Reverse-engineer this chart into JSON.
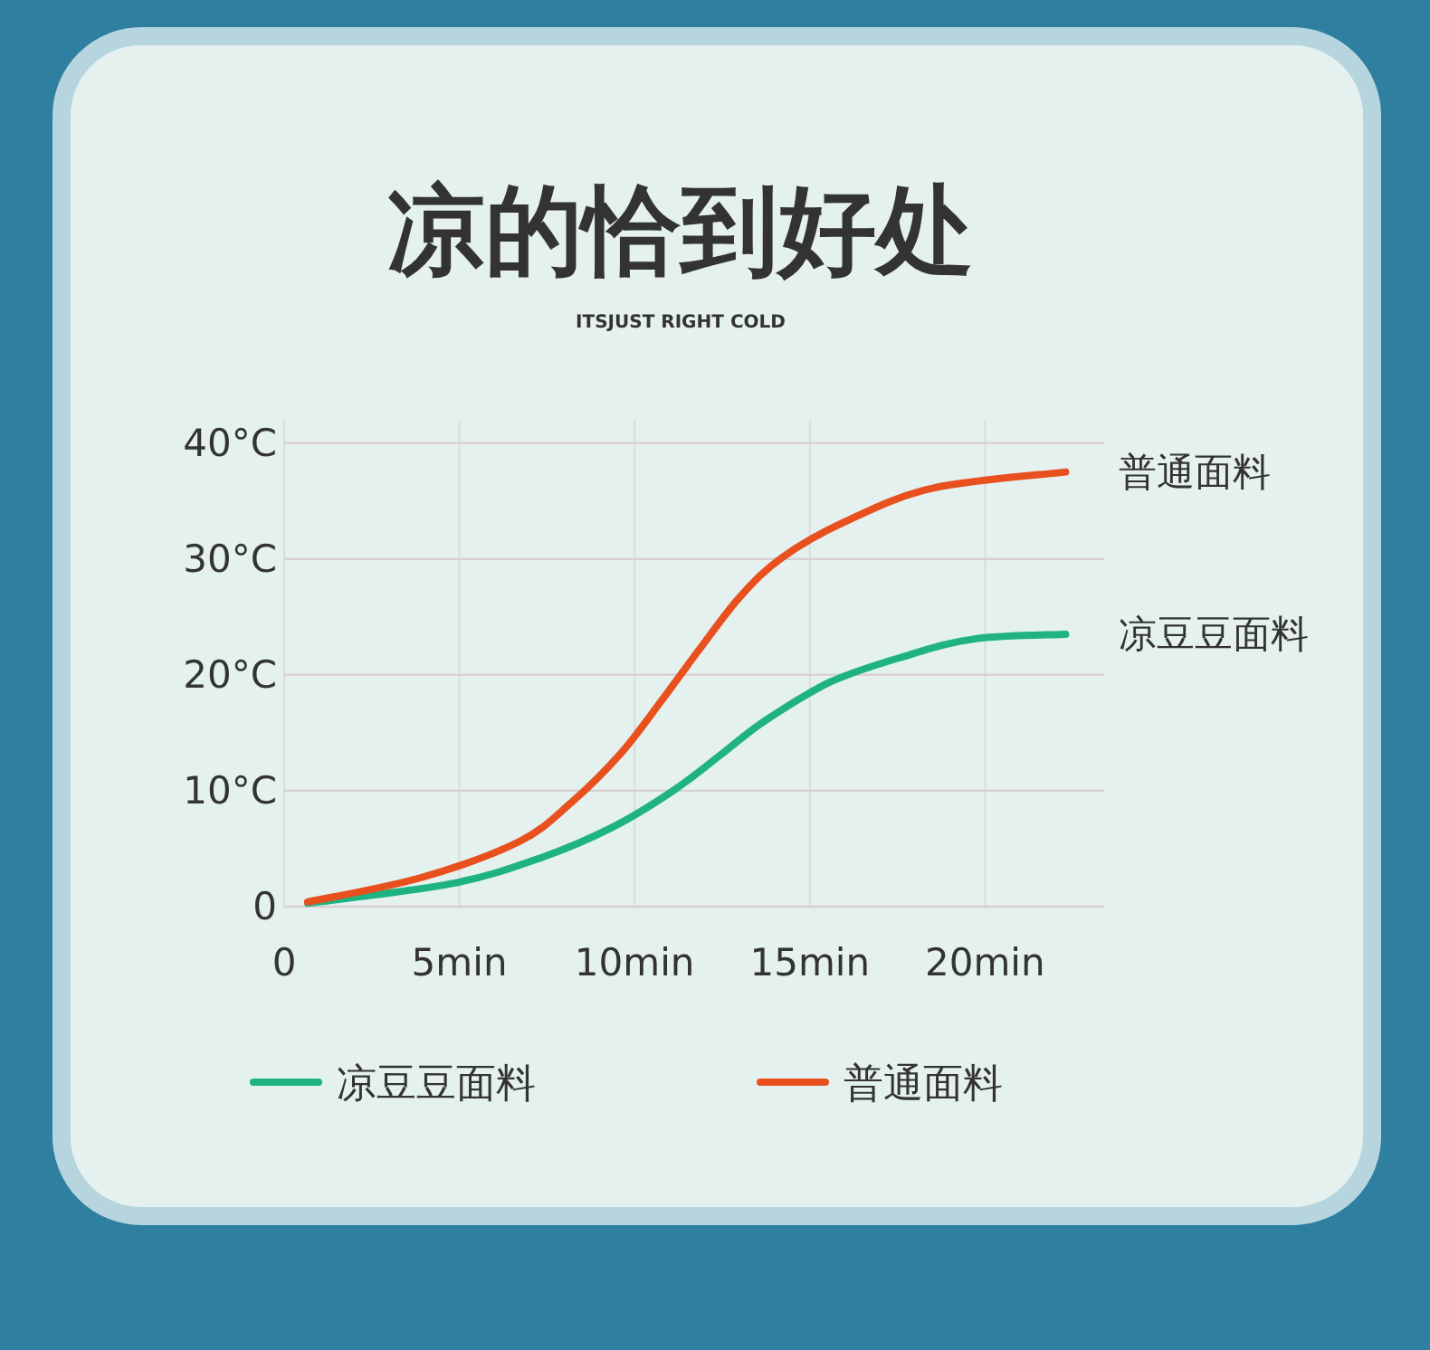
{
  "chart_data": {
    "type": "line",
    "title": "凉的恰到好处",
    "subtitle": "ITSJUST RIGHT COLD",
    "xlim": [
      0,
      23.4
    ],
    "ylim": [
      0,
      42
    ],
    "xticks": [
      0,
      {
        "value": 5,
        "label": "5min"
      },
      {
        "value": 10,
        "label": "10min"
      },
      {
        "value": 15,
        "label": "15min"
      },
      {
        "value": 20,
        "label": "20min"
      }
    ],
    "yticks": [
      0,
      {
        "value": 10,
        "label": "10°C"
      },
      {
        "value": 20,
        "label": "20°C"
      },
      {
        "value": 30,
        "label": "30°C"
      },
      {
        "value": 40,
        "label": "40°C"
      }
    ],
    "grid": true,
    "legend": "bottom",
    "marker": "none",
    "line_style": "solid",
    "series": [
      {
        "name": "凉豆豆面料",
        "color": "#1fb384",
        "x": [
          0.67,
          4.8,
          7.4,
          9.4,
          11.1,
          12.5,
          13.7,
          15.6,
          17.7,
          19.7,
          22.3
        ],
        "values": [
          0.3,
          2.0,
          4.3,
          6.9,
          10.0,
          13.2,
          16.0,
          19.4,
          21.6,
          23.1,
          23.5
        ]
      },
      {
        "name": "普通面料",
        "color": "#e8501e",
        "x": [
          0.67,
          3.9,
          6.7,
          8.2,
          9.6,
          10.8,
          11.8,
          13.0,
          14.2,
          16.0,
          18.5,
          22.3
        ],
        "values": [
          0.4,
          2.5,
          5.6,
          9.0,
          13.2,
          17.9,
          22.0,
          26.7,
          30.1,
          33.2,
          36.1,
          37.5
        ]
      }
    ]
  }
}
